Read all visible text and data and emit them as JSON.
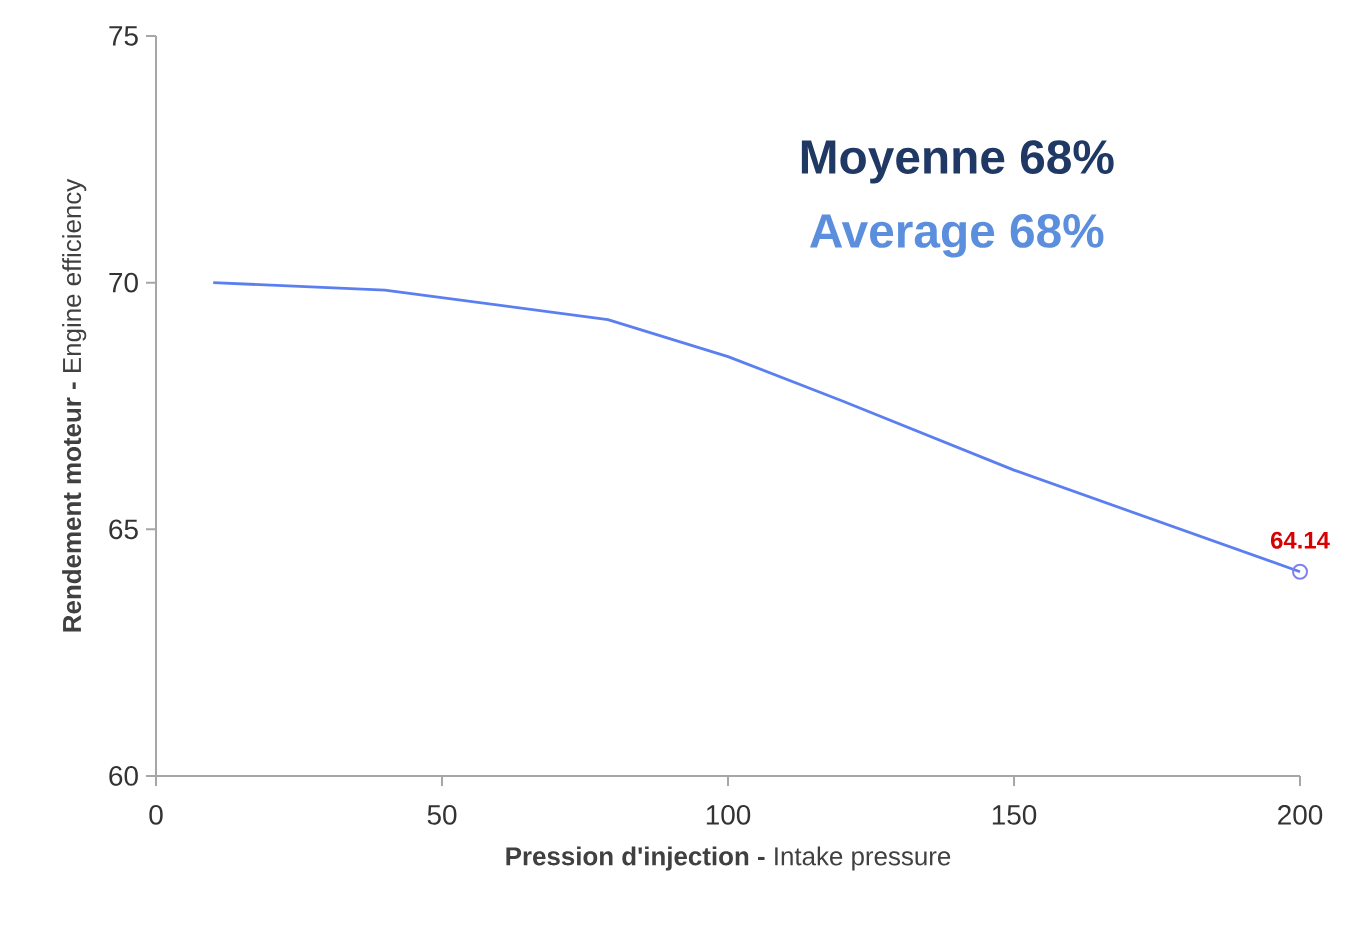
{
  "chart_data": {
    "type": "line",
    "title": "Moyenne 68%",
    "subtitle": "Average 68%",
    "xlabel": "**Pression d'injection -** Intake pressure",
    "ylabel": "**Rendement moteur -** Engine efficiency",
    "xlim": [
      0,
      200
    ],
    "ylim": [
      60,
      75
    ],
    "xticks": [
      0,
      50,
      100,
      150,
      200
    ],
    "yticks": [
      60,
      65,
      70,
      75
    ],
    "grid": false,
    "legend": false,
    "series": [
      {
        "color": "#5b7ff0",
        "marker": "none",
        "x": [
          10,
          40,
          79,
          100,
          120,
          150,
          200
        ],
        "values": [
          70.0,
          69.85,
          69.25,
          68.5,
          67.6,
          66.2,
          64.14
        ]
      },
      {
        "type": "scatter",
        "color": "#8080f0",
        "marker": "circle",
        "x": [
          200
        ],
        "values": [
          64.14
        ],
        "value_labels": [
          "64.14"
        ]
      }
    ]
  }
}
